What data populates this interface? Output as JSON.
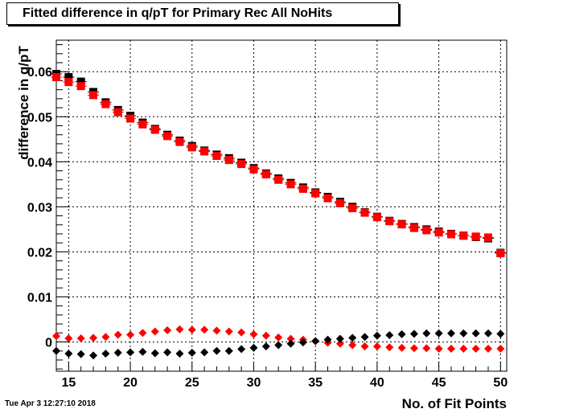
{
  "title": "Fitted difference in q/pT  for Primary Rec All NoHits",
  "timestamp": "Tue Apr  3 12:27:10 2018",
  "chart_data": {
    "type": "scatter",
    "title": "Fitted difference in q/pT  for Primary Rec All NoHits",
    "xlabel": "No. of Fit Points",
    "ylabel": "difference in q/pT",
    "xlim": [
      14,
      50.5
    ],
    "ylim": [
      -0.0065,
      0.067
    ],
    "grid": true,
    "x_ticks": [
      "15",
      "20",
      "25",
      "30",
      "35",
      "40",
      "45",
      "50"
    ],
    "y_ticks": [
      "0",
      "0.01",
      "0.02",
      "0.03",
      "0.04",
      "0.05",
      "0.06"
    ],
    "x": [
      14,
      15,
      16,
      17,
      18,
      19,
      20,
      21,
      22,
      23,
      24,
      25,
      26,
      27,
      28,
      29,
      30,
      31,
      32,
      33,
      34,
      35,
      36,
      37,
      38,
      39,
      40,
      41,
      42,
      43,
      44,
      45,
      46,
      47,
      48,
      49,
      50
    ],
    "series": [
      {
        "marker": "square",
        "color": "#000000",
        "values": [
          0.0595,
          0.0588,
          0.0578,
          0.0555,
          0.0532,
          0.0515,
          0.0502,
          0.0487,
          0.0473,
          0.046,
          0.0447,
          0.0435,
          0.0425,
          0.0416,
          0.0408,
          0.0398,
          0.0386,
          0.0374,
          0.0363,
          0.0353,
          0.0343,
          0.0332,
          0.0322,
          0.0311,
          0.03,
          0.0288,
          0.0278,
          0.0269,
          0.0262,
          0.0255,
          0.025,
          0.0245,
          0.024,
          0.0236,
          0.0233,
          0.023,
          0.0198
        ]
      },
      {
        "marker": "square",
        "color": "#ff0000",
        "values": [
          0.0588,
          0.0577,
          0.0568,
          0.0548,
          0.0528,
          0.051,
          0.0496,
          0.0483,
          0.0471,
          0.0457,
          0.0444,
          0.0432,
          0.0423,
          0.0413,
          0.0404,
          0.0395,
          0.0383,
          0.0372,
          0.036,
          0.035,
          0.034,
          0.033,
          0.0319,
          0.0308,
          0.0297,
          0.0287,
          0.0277,
          0.0268,
          0.0261,
          0.0253,
          0.0248,
          0.0243,
          0.0239,
          0.0236,
          0.0234,
          0.0232,
          0.0197
        ]
      },
      {
        "marker": "diamond",
        "color": "#ff0000",
        "values": [
          0.0013,
          0.0008,
          0.0008,
          0.0009,
          0.0011,
          0.0016,
          0.0016,
          0.002,
          0.0023,
          0.0026,
          0.0028,
          0.0027,
          0.0027,
          0.0025,
          0.0023,
          0.0021,
          0.0017,
          0.0014,
          0.001,
          0.0007,
          0.0005,
          0.0002,
          -0.0002,
          -0.0004,
          -0.0007,
          -0.001,
          -0.001,
          -0.0012,
          -0.0013,
          -0.0014,
          -0.0014,
          -0.0015,
          -0.0015,
          -0.0015,
          -0.0015,
          -0.0015,
          -0.0015
        ]
      },
      {
        "marker": "diamond",
        "color": "#000000",
        "values": [
          -0.002,
          -0.0026,
          -0.0027,
          -0.003,
          -0.0026,
          -0.0024,
          -0.0023,
          -0.0022,
          -0.0025,
          -0.0023,
          -0.0026,
          -0.0024,
          -0.0023,
          -0.002,
          -0.002,
          -0.0016,
          -0.0013,
          -0.001,
          -0.0007,
          -0.0004,
          -0.0001,
          0.0002,
          0.0005,
          0.0007,
          0.0009,
          0.0011,
          0.0014,
          0.0015,
          0.0017,
          0.0018,
          0.0019,
          0.0019,
          0.0019,
          0.0019,
          0.0019,
          0.0019,
          0.0018
        ]
      }
    ]
  }
}
